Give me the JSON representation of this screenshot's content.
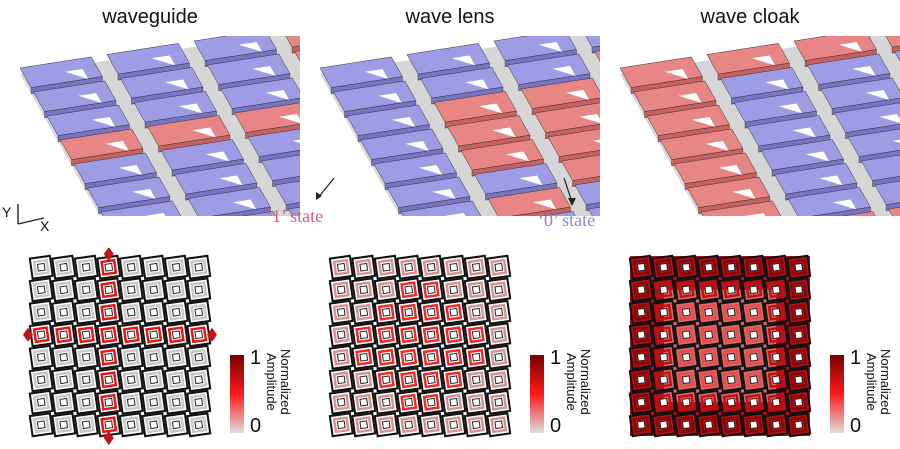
{
  "panels": [
    {
      "title": "waveguide",
      "pattern": "waveguide"
    },
    {
      "title": "wave lens",
      "pattern": "lens"
    },
    {
      "title": "wave cloak",
      "pattern": "cloak"
    }
  ],
  "states": {
    "one": {
      "label": "‘1’ state",
      "color": "#d9597a"
    },
    "zero": {
      "label": "‘0’ state",
      "color": "#8a86d6"
    }
  },
  "colorbar": {
    "title_line1": "Normalized",
    "title_line2": "Amplitude",
    "max": "1",
    "min": "0"
  },
  "axes": {
    "y": "Y",
    "x": "X"
  },
  "colors": {
    "red_cell": "#e88585",
    "red_side": "#c96060",
    "blue_cell": "#9f9ce6",
    "blue_side": "#7774c4"
  }
}
